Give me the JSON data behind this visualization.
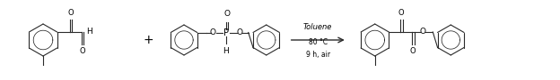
{
  "fig_width": 6.24,
  "fig_height": 0.9,
  "dpi": 100,
  "bg_color": "#ffffff",
  "line_color": "#2a2a2a",
  "text_color": "#000000",
  "reaction_conditions": [
    "Toluene",
    "80 °C",
    "9 h, air"
  ]
}
